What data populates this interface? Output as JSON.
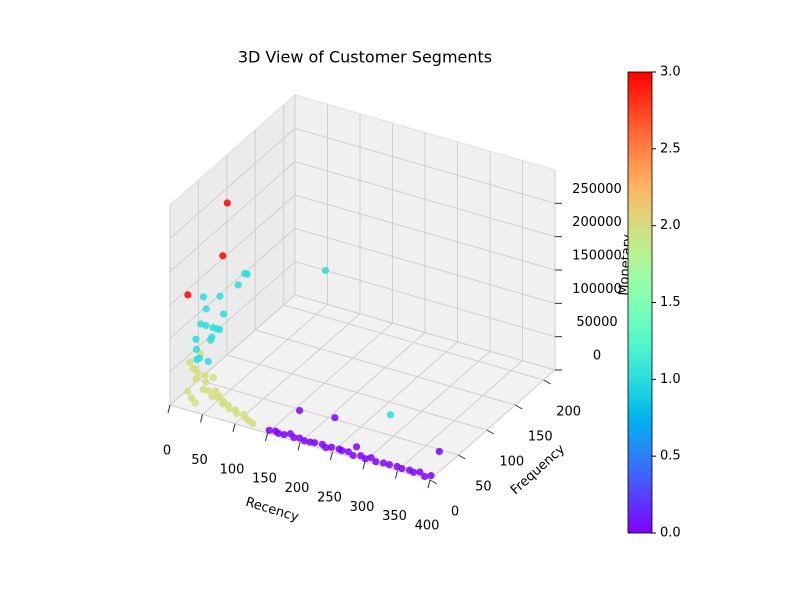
{
  "chart_data": {
    "type": "scatter3d",
    "title": "3D View of Customer Segments",
    "xlabel": "Recency",
    "ylabel": "Frequency",
    "zlabel": "Monetary",
    "xlim": [
      0,
      400
    ],
    "ylim": [
      0,
      220
    ],
    "zlim": [
      0,
      300000
    ],
    "xticks": [
      0,
      50,
      100,
      150,
      200,
      250,
      300,
      350,
      400
    ],
    "yticks": [
      0,
      50,
      100,
      150,
      200
    ],
    "zticks": [
      0,
      50000,
      100000,
      150000,
      200000,
      250000
    ],
    "colormap": "rainbow",
    "clim": [
      0,
      3
    ],
    "cticks": [
      {
        "value": 0,
        "label": "0.0"
      },
      0.5,
      {
        "value": 1,
        "label": "1.0"
      },
      1.5,
      {
        "value": 2,
        "label": "2.0"
      },
      2.5,
      {
        "value": 3,
        "label": "3.0"
      }
    ],
    "grid": true,
    "x": [
      150,
      158,
      165,
      172,
      180,
      188,
      195,
      205,
      212,
      220,
      230,
      238,
      245,
      255,
      262,
      270,
      280,
      290,
      298,
      305,
      315,
      325,
      335,
      345,
      355,
      365,
      372,
      380,
      390,
      398,
      160,
      210,
      375,
      273,
      5,
      8,
      12,
      15,
      18,
      22,
      25,
      30,
      35,
      40,
      45,
      50,
      55,
      60,
      65,
      70,
      78,
      85,
      92,
      100,
      108,
      115,
      122,
      10,
      20,
      30,
      3,
      6,
      5,
      8,
      10,
      12,
      15,
      18,
      20,
      25,
      10,
      15,
      20,
      30,
      35,
      40,
      45,
      28,
      12,
      22,
      6,
      60,
      271,
      10,
      20,
      40
    ],
    "y": [
      3,
      5,
      2,
      4,
      6,
      3,
      5,
      2,
      4,
      3,
      5,
      2,
      4,
      6,
      3,
      5,
      2,
      4,
      3,
      5,
      2,
      4,
      3,
      5,
      2,
      4,
      3,
      5,
      2,
      4,
      45,
      50,
      45,
      16,
      35,
      40,
      30,
      45,
      25,
      38,
      30,
      42,
      28,
      35,
      22,
      30,
      20,
      25,
      18,
      22,
      15,
      18,
      12,
      15,
      10,
      8,
      6,
      20,
      15,
      10,
      50,
      28,
      40,
      45,
      35,
      50,
      30,
      55,
      40,
      45,
      60,
      70,
      65,
      60,
      80,
      90,
      80,
      50,
      38,
      42,
      52,
      205,
      78,
      20,
      70,
      55
    ],
    "z": [
      2000,
      1500,
      2500,
      1000,
      3000,
      2000,
      1500,
      2500,
      1000,
      3000,
      2000,
      1500,
      2500,
      1000,
      3000,
      2000,
      1500,
      2500,
      1000,
      3000,
      2000,
      1500,
      2500,
      1000,
      3000,
      2000,
      1500,
      2500,
      1000,
      3000,
      3000,
      2500,
      2000,
      2000,
      30000,
      20000,
      35000,
      15000,
      25000,
      12000,
      8000,
      18000,
      10000,
      6000,
      9000,
      5000,
      12000,
      4000,
      7000,
      3000,
      5000,
      3000,
      4000,
      2500,
      3000,
      2000,
      2000,
      8000,
      5000,
      4000,
      40000,
      45000,
      70000,
      90000,
      60000,
      110000,
      50000,
      80000,
      95000,
      75000,
      55000,
      65000,
      120000,
      100000,
      130000,
      140000,
      150000,
      85000,
      45000,
      40000,
      125000,
      65000,
      3000,
      153000,
      177000,
      273000
    ],
    "c": [
      0,
      0,
      0,
      0,
      0,
      0,
      0,
      0,
      0,
      0,
      0,
      0,
      0,
      0,
      0,
      0,
      0,
      0,
      0,
      0,
      0,
      0,
      0,
      0,
      0,
      0,
      0,
      0,
      0,
      0,
      0,
      0,
      0,
      0,
      2,
      2,
      2,
      2,
      2,
      2,
      2,
      2,
      2,
      2,
      2,
      2,
      2,
      2,
      2,
      2,
      2,
      2,
      2,
      2,
      2,
      2,
      2,
      2,
      2,
      2,
      2,
      2,
      1,
      1,
      1,
      1,
      1,
      1,
      1,
      1,
      1,
      1,
      1,
      1,
      1,
      1,
      1,
      1,
      1,
      1,
      1,
      1,
      1,
      3,
      3,
      3
    ]
  }
}
